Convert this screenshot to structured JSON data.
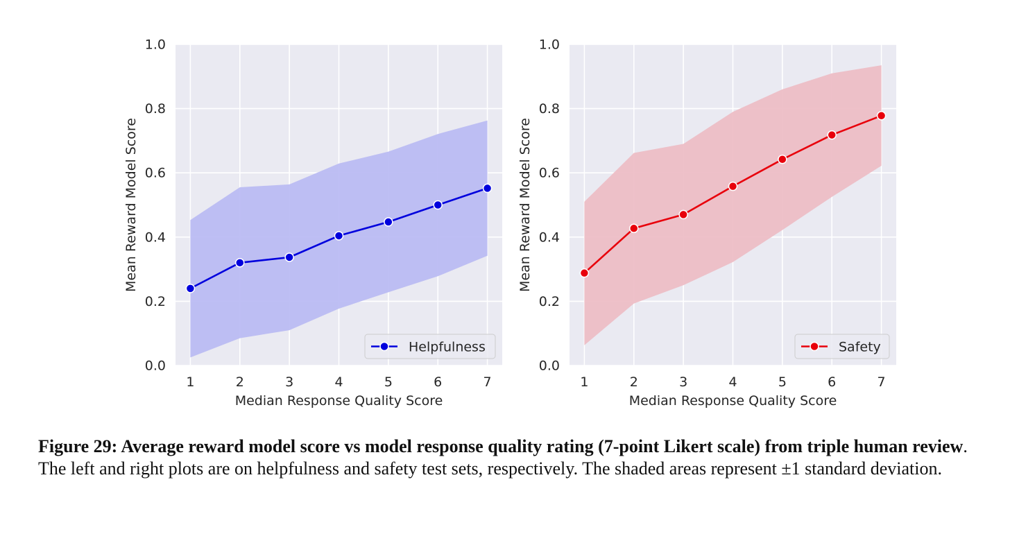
{
  "chart_data": [
    {
      "type": "line",
      "x": [
        1,
        2,
        3,
        4,
        5,
        6,
        7
      ],
      "xlabel": "Median Response Quality Score",
      "ylabel": "Mean Reward Model Score",
      "xlim": [
        0.7,
        7.3
      ],
      "ylim": [
        0.0,
        1.0
      ],
      "xticks": [
        "1",
        "2",
        "3",
        "4",
        "5",
        "6",
        "7"
      ],
      "yticks": [
        "0.0",
        "0.2",
        "0.4",
        "0.6",
        "0.8",
        "1.0"
      ],
      "grid": true,
      "legend_position": "lower-right",
      "series": [
        {
          "name": "Helpfulness",
          "values": [
            0.24,
            0.32,
            0.337,
            0.404,
            0.447,
            0.5,
            0.552
          ],
          "lower": [
            0.025,
            0.085,
            0.11,
            0.177,
            0.228,
            0.278,
            0.342
          ],
          "upper": [
            0.453,
            0.555,
            0.564,
            0.629,
            0.666,
            0.721,
            0.763
          ],
          "color": "#0000dd",
          "band_color": "#b9baf3"
        }
      ]
    },
    {
      "type": "line",
      "x": [
        1,
        2,
        3,
        4,
        5,
        6,
        7
      ],
      "xlabel": "Median Response Quality Score",
      "ylabel": "Mean Reward Model Score",
      "xlim": [
        0.7,
        7.3
      ],
      "ylim": [
        0.0,
        1.0
      ],
      "xticks": [
        "1",
        "2",
        "3",
        "4",
        "5",
        "6",
        "7"
      ],
      "yticks": [
        "0.0",
        "0.2",
        "0.4",
        "0.6",
        "0.8",
        "1.0"
      ],
      "grid": true,
      "legend_position": "lower-right",
      "series": [
        {
          "name": "Safety",
          "values": [
            0.288,
            0.427,
            0.47,
            0.558,
            0.642,
            0.718,
            0.778
          ],
          "lower": [
            0.063,
            0.193,
            0.25,
            0.322,
            0.422,
            0.525,
            0.622
          ],
          "upper": [
            0.51,
            0.662,
            0.69,
            0.79,
            0.86,
            0.91,
            0.935
          ],
          "color": "#e8000b",
          "band_color": "#edbcc4"
        }
      ]
    }
  ],
  "caption": {
    "bold": "Figure 29: Average reward model score vs model response quality rating (7-point Likert scale) from triple human review",
    "text": ". The left and right plots are on helpfulness and safety test sets, respectively. The shaded areas represent ±1 standard deviation."
  }
}
